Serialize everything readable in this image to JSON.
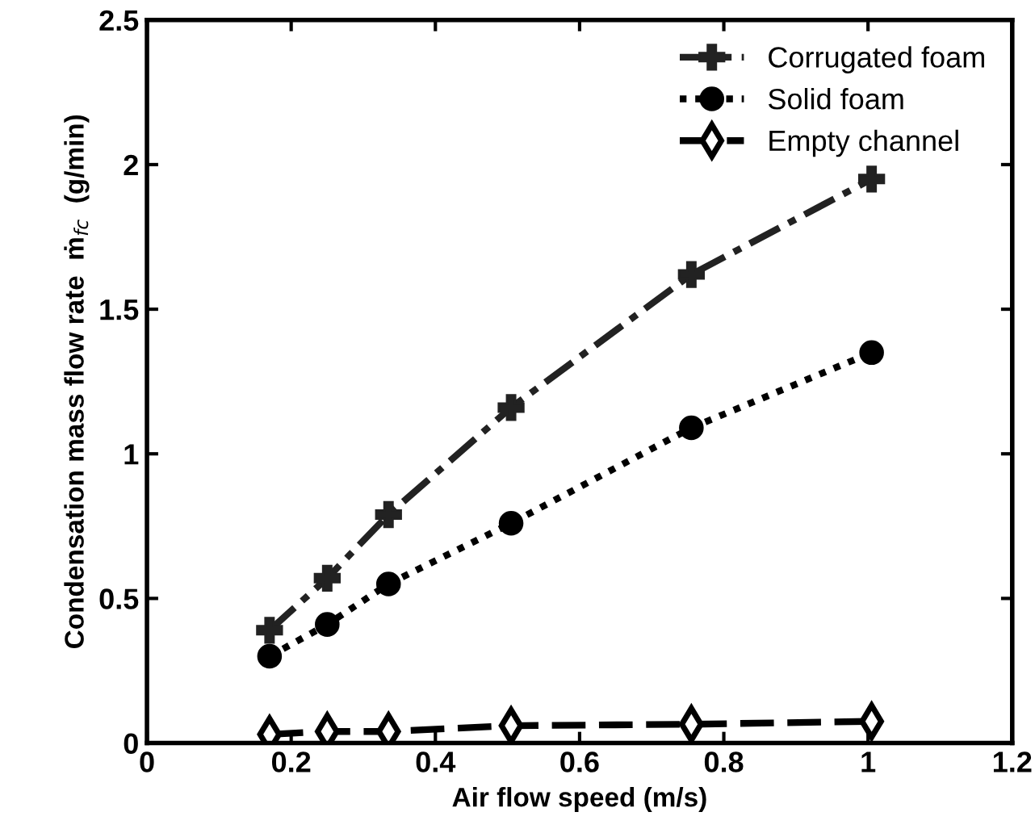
{
  "chart_data": {
    "type": "line",
    "xlabel": "Air flow speed (m/s)",
    "ylabel": "Condensation mass flow rate  ṁ$_{fc}$  (g/min)",
    "xlim": [
      0,
      1.2
    ],
    "xticks": [
      0,
      0.2,
      0.4,
      0.6,
      0.8,
      1,
      1.2
    ],
    "ylim": [
      0,
      2.5
    ],
    "yticks": [
      0,
      0.5,
      1,
      1.5,
      2,
      2.5
    ],
    "x": [
      0.17,
      0.25,
      0.335,
      0.505,
      0.755,
      1.005
    ],
    "grid": false,
    "legend": "top right",
    "series": [
      {
        "name": "Corrugated foam",
        "color": "#222222",
        "marker": "cross",
        "line_style": "dashdot",
        "values": [
          0.39,
          0.57,
          0.79,
          1.16,
          1.62,
          1.95
        ]
      },
      {
        "name": "Solid foam",
        "color": "#000000",
        "marker": "circle",
        "line_style": "dotted",
        "values": [
          0.3,
          0.41,
          0.55,
          0.76,
          1.09,
          1.35
        ]
      },
      {
        "name": "Empty channel",
        "color": "#000000",
        "marker": "diamond",
        "line_style": "dashed",
        "values": [
          0.03,
          0.04,
          0.04,
          0.06,
          0.065,
          0.075
        ]
      }
    ]
  }
}
